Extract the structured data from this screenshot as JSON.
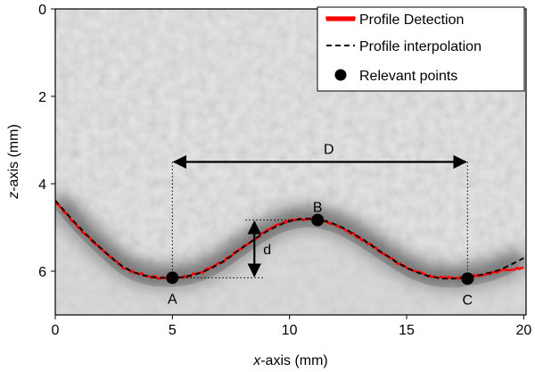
{
  "chart_data": {
    "type": "line",
    "title": "",
    "xlabel_italic": "x",
    "xlabel_rest": "-axis (mm)",
    "ylabel_italic": "z",
    "ylabel_rest": "-axis (mm)",
    "xlim": [
      0,
      20.1
    ],
    "ylim": [
      7.0,
      0
    ],
    "y_inverted": true,
    "x_ticks": [
      0,
      5,
      10,
      15,
      20
    ],
    "x_tick_labels": [
      "0",
      "5",
      "10",
      "15",
      "20"
    ],
    "y_ticks": [
      0,
      2,
      4,
      6
    ],
    "y_tick_labels": [
      "0",
      "2",
      "4",
      "6"
    ],
    "grid": false,
    "background": "grayscale ultrasound image",
    "legend_position": "top-right",
    "series": [
      {
        "name": "Profile Detection",
        "style": "solid-noisy",
        "color": "#ff0000",
        "x": [
          0,
          1,
          2,
          3,
          4,
          5,
          6,
          7,
          8,
          9,
          10,
          11,
          12,
          13,
          14,
          15,
          16,
          17,
          18,
          19,
          20
        ],
        "y": [
          4.4,
          5.0,
          5.51,
          5.94,
          6.11,
          6.15,
          6.06,
          5.82,
          5.45,
          5.09,
          4.86,
          4.81,
          4.95,
          5.24,
          5.6,
          5.92,
          6.11,
          6.16,
          6.1,
          6.0,
          5.92
        ]
      },
      {
        "name": "Profile interpolation",
        "style": "dashed",
        "color": "#000000",
        "x": [
          0,
          1,
          2,
          3,
          4,
          5,
          6,
          7,
          8,
          9,
          10,
          11,
          12,
          13,
          14,
          15,
          16,
          17,
          18,
          19,
          20
        ],
        "y": [
          4.38,
          4.98,
          5.5,
          5.93,
          6.12,
          6.15,
          6.07,
          5.83,
          5.46,
          5.1,
          4.86,
          4.8,
          4.94,
          5.23,
          5.59,
          5.92,
          6.12,
          6.17,
          6.1,
          5.96,
          5.7
        ]
      },
      {
        "name": "Relevant points",
        "style": "markers",
        "color": "#000000",
        "x": [
          5.0,
          11.2,
          17.6
        ],
        "y": [
          6.15,
          4.83,
          6.17
        ],
        "labels": [
          "A",
          "B",
          "C"
        ]
      }
    ],
    "annotations": [
      {
        "label": "D",
        "type": "double-arrow-horizontal",
        "x0": 5.0,
        "x1": 17.6,
        "y": 3.5
      },
      {
        "label": "d",
        "type": "double-arrow-vertical",
        "x": 8.5,
        "y0": 4.83,
        "y1": 6.15
      }
    ]
  }
}
